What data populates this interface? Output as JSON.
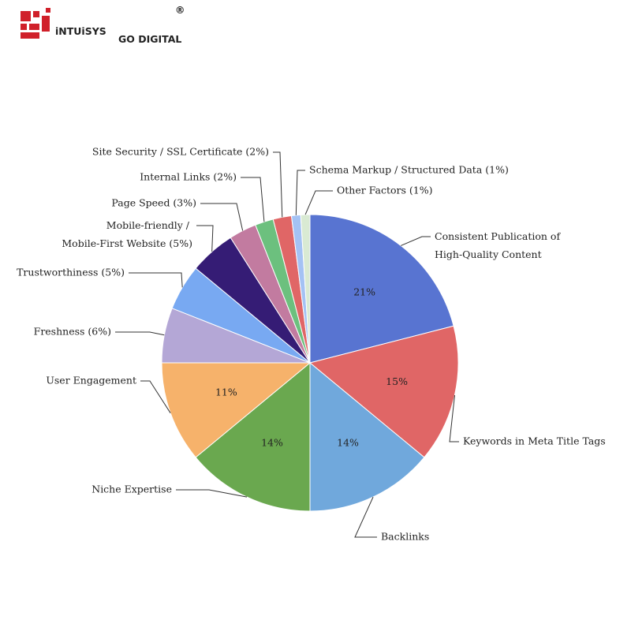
{
  "logo": {
    "name": "iNTUiSYS",
    "mark": "®",
    "tagline": "GO DIGITAL"
  },
  "chart_data": {
    "type": "pie",
    "categories": [
      "Consistent Publication of High-Quality Content",
      "Keywords in Meta Title Tags",
      "Backlinks",
      "Niche Expertise",
      "User Engagement",
      "Freshness (6%)",
      "Trustworthiness (5%)",
      "Mobile-friendly / Mobile-First Website (5%)",
      "Page Speed (3%)",
      "Internal Links (2%)",
      "Site Security / SSL Certificate (2%)",
      "Schema Markup / Structured Data (1%)",
      "Other Factors (1%)"
    ],
    "values": [
      21,
      15,
      14,
      14,
      11,
      6,
      5,
      5,
      3,
      2,
      2,
      1,
      1
    ],
    "value_labels": [
      "21%",
      "15%",
      "14%",
      "14%",
      "11%",
      null,
      null,
      null,
      null,
      null,
      null,
      null,
      null
    ],
    "colors": [
      "#5874d1",
      "#e06666",
      "#70a8dc",
      "#6aa84f",
      "#f6b26b",
      "#b4a7d6",
      "#78a9f2",
      "#351c75",
      "#c27ba0",
      "#6cc07e",
      "#e06666",
      "#a4c2f4",
      "#d9ead3"
    ]
  }
}
